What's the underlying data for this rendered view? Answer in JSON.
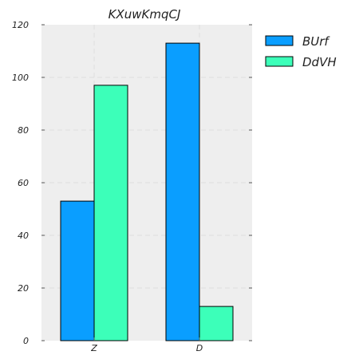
{
  "chart_data": {
    "type": "bar",
    "title": "KXuwKmqCJ",
    "xlabel": "",
    "ylabel": "",
    "categories": [
      "Z",
      "D"
    ],
    "series": [
      {
        "name": "BUrf",
        "values": [
          53,
          113
        ],
        "color": "#0a9eff"
      },
      {
        "name": "DdVH",
        "values": [
          97,
          13
        ],
        "color": "#3cffb9"
      }
    ],
    "ylim": [
      0,
      120
    ],
    "yticks": [
      0,
      20,
      40,
      60,
      80,
      100,
      120
    ],
    "grid": true,
    "legend_position": "outside-top-right",
    "background_color": "#eeeeee",
    "grid_color": "#dddddd"
  }
}
